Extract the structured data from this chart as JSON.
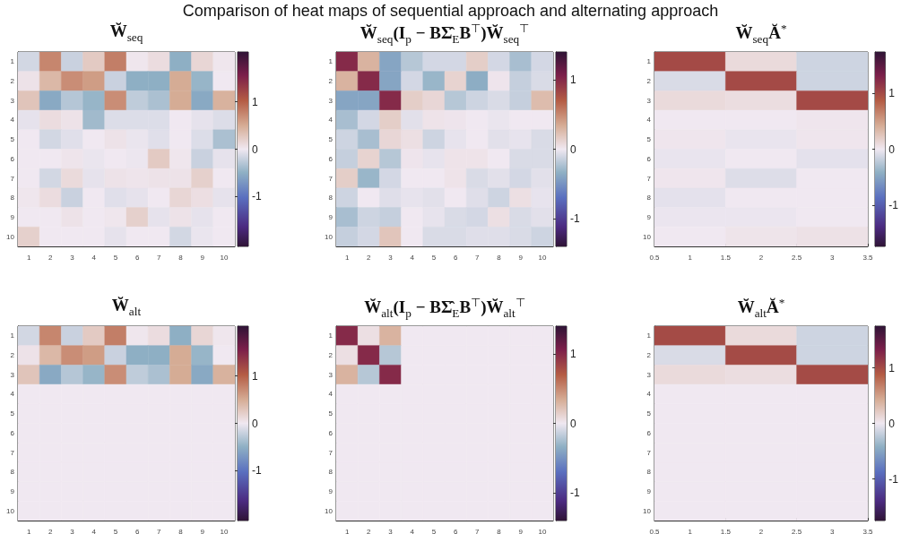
{
  "chart_data": [
    {
      "type": "heatmap",
      "title": "Comparison of heat maps of sequential approach and alternating approach",
      "subtitle": "W̆$_{seq}$",
      "categories": [
        "1",
        "2",
        "3",
        "4",
        "5",
        "6",
        "7",
        "8",
        "9",
        "10"
      ],
      "y_categories": [
        "1",
        "2",
        "3",
        "4",
        "5",
        "6",
        "7",
        "8",
        "9",
        "10"
      ],
      "cells": [
        [
          -0.15,
          0.75,
          -0.2,
          0.25,
          0.8,
          0.02,
          0.1,
          -0.5,
          0.15,
          0.02
        ],
        [
          0.05,
          0.4,
          0.7,
          0.6,
          -0.2,
          -0.5,
          -0.5,
          0.5,
          -0.45,
          0.0
        ],
        [
          0.3,
          -0.55,
          -0.3,
          -0.45,
          0.7,
          -0.25,
          -0.35,
          0.5,
          -0.55,
          0.45
        ],
        [
          -0.05,
          0.1,
          0.05,
          -0.4,
          -0.1,
          -0.1,
          -0.1,
          0.0,
          -0.05,
          -0.1
        ],
        [
          0.0,
          -0.15,
          -0.08,
          0.0,
          0.05,
          -0.03,
          -0.08,
          0.0,
          -0.1,
          -0.35
        ],
        [
          0.0,
          0.0,
          0.03,
          -0.03,
          0.0,
          -0.02,
          0.25,
          0.02,
          -0.2,
          -0.05
        ],
        [
          0.0,
          -0.15,
          0.12,
          -0.05,
          0.05,
          0.03,
          0.05,
          0.05,
          0.2,
          0.0
        ],
        [
          0.02,
          0.1,
          -0.2,
          0.0,
          -0.08,
          -0.05,
          0.0,
          0.15,
          0.08,
          -0.05
        ],
        [
          0.0,
          0.0,
          0.05,
          0.0,
          0.02,
          0.2,
          -0.05,
          0.05,
          -0.05,
          0.0
        ],
        [
          0.2,
          0.0,
          0.0,
          0.0,
          -0.05,
          0.0,
          0.0,
          -0.15,
          -0.03,
          0.0
        ]
      ],
      "clim": [
        -2.05,
        2.05
      ],
      "cticks": [
        -1,
        0,
        1
      ]
    },
    {
      "type": "heatmap",
      "title": "W̆$_{seq}$(I$_{p}$ − BΣ̂$_{E}$B$^{⊤}$)W̆$_{seq}$$^{⊤}$",
      "categories": [
        "1",
        "2",
        "3",
        "4",
        "5",
        "6",
        "7",
        "8",
        "9",
        "10"
      ],
      "y_categories": [
        "1",
        "2",
        "3",
        "4",
        "5",
        "6",
        "7",
        "8",
        "9",
        "10"
      ],
      "cells": [
        [
          1.0,
          0.3,
          -0.4,
          -0.2,
          -0.1,
          -0.1,
          0.15,
          -0.1,
          -0.25,
          -0.1
        ],
        [
          0.3,
          1.0,
          -0.4,
          -0.1,
          -0.3,
          0.12,
          -0.35,
          0.02,
          -0.15,
          -0.08
        ],
        [
          -0.4,
          -0.4,
          1.0,
          0.15,
          0.1,
          -0.2,
          -0.12,
          -0.08,
          -0.15,
          0.25
        ],
        [
          -0.25,
          -0.1,
          0.15,
          -0.05,
          0.03,
          0.02,
          0.0,
          -0.02,
          0.0,
          0.0
        ],
        [
          -0.12,
          -0.25,
          0.1,
          0.05,
          -0.12,
          -0.03,
          0.0,
          -0.05,
          -0.03,
          -0.08
        ],
        [
          -0.15,
          0.12,
          -0.2,
          0.02,
          -0.03,
          0.03,
          0.03,
          0.0,
          -0.08,
          -0.08
        ],
        [
          0.15,
          -0.3,
          -0.1,
          0.0,
          0.0,
          0.03,
          -0.08,
          -0.05,
          -0.1,
          -0.05
        ],
        [
          -0.12,
          0.0,
          -0.06,
          -0.03,
          -0.05,
          0.0,
          -0.06,
          -0.12,
          0.05,
          -0.03
        ],
        [
          -0.25,
          -0.12,
          -0.15,
          0.0,
          -0.03,
          -0.08,
          -0.1,
          0.05,
          -0.08,
          -0.05
        ],
        [
          -0.15,
          -0.1,
          0.2,
          0.0,
          -0.08,
          -0.08,
          -0.06,
          -0.06,
          -0.08,
          -0.12
        ]
      ],
      "clim": [
        -1.4,
        1.4
      ],
      "cticks": [
        -1,
        0,
        1
      ]
    },
    {
      "type": "heatmap",
      "title": "W̆$_{seq}$Ă$^{*}$",
      "x": [
        1,
        2,
        3
      ],
      "xlim": [
        0.5,
        3.5
      ],
      "xticks": [
        0.5,
        1,
        1.5,
        2,
        2.5,
        3,
        3.5
      ],
      "y_categories": [
        "1",
        "2",
        "3",
        "4",
        "5",
        "6",
        "7",
        "8",
        "9",
        "10"
      ],
      "cells": [
        [
          1.0,
          0.1,
          -0.15
        ],
        [
          -0.1,
          1.0,
          -0.15
        ],
        [
          0.1,
          0.08,
          1.0
        ],
        [
          0.0,
          0.0,
          0.02
        ],
        [
          0.02,
          -0.03,
          0.02
        ],
        [
          -0.03,
          0.0,
          -0.05
        ],
        [
          0.02,
          -0.08,
          0.0
        ],
        [
          -0.05,
          0.0,
          0.0
        ],
        [
          -0.02,
          -0.02,
          0.0
        ],
        [
          0.0,
          0.03,
          0.05
        ]
      ],
      "clim": [
        -1.74,
        1.74
      ],
      "cticks": [
        -1,
        0,
        1
      ]
    },
    {
      "type": "heatmap",
      "title": "W̆$_{alt}$",
      "categories": [
        "1",
        "2",
        "3",
        "4",
        "5",
        "6",
        "7",
        "8",
        "9",
        "10"
      ],
      "y_categories": [
        "1",
        "2",
        "3",
        "4",
        "5",
        "6",
        "7",
        "8",
        "9",
        "10"
      ],
      "cells": [
        [
          -0.15,
          0.75,
          -0.2,
          0.25,
          0.8,
          0.02,
          0.1,
          -0.5,
          0.15,
          0.02
        ],
        [
          0.05,
          0.4,
          0.7,
          0.6,
          -0.2,
          -0.5,
          -0.5,
          0.5,
          -0.45,
          0.0
        ],
        [
          0.3,
          -0.55,
          -0.3,
          -0.45,
          0.7,
          -0.25,
          -0.35,
          0.5,
          -0.55,
          0.45
        ],
        [
          0,
          0,
          0,
          0,
          0,
          0,
          0,
          0,
          0,
          0
        ],
        [
          0,
          0,
          0,
          0,
          0,
          0,
          0,
          0,
          0,
          0
        ],
        [
          0,
          0,
          0,
          0,
          0,
          0,
          0,
          0,
          0,
          0
        ],
        [
          0,
          0,
          0,
          0,
          0,
          0,
          0,
          0,
          0,
          0
        ],
        [
          0,
          0,
          0,
          0,
          0,
          0,
          0,
          0,
          0,
          0
        ],
        [
          0,
          0,
          0,
          0,
          0,
          0,
          0,
          0,
          0,
          0
        ],
        [
          0,
          0,
          0,
          0,
          0,
          0,
          0,
          0,
          0,
          0
        ]
      ],
      "clim": [
        -2.05,
        2.05
      ],
      "cticks": [
        -1,
        0,
        1
      ]
    },
    {
      "type": "heatmap",
      "title": "W̆$_{alt}$(I$_{p}$ − BΣ̂$_{E}$B$^{⊤}$)W̆$_{alt}$$^{⊤}$",
      "categories": [
        "1",
        "2",
        "3",
        "4",
        "5",
        "6",
        "7",
        "8",
        "9",
        "10"
      ],
      "y_categories": [
        "1",
        "2",
        "3",
        "4",
        "5",
        "6",
        "7",
        "8",
        "9",
        "10"
      ],
      "cells": [
        [
          1.0,
          0.05,
          0.3,
          0,
          0,
          0,
          0,
          0,
          0,
          0
        ],
        [
          0.05,
          1.0,
          -0.2,
          0,
          0,
          0,
          0,
          0,
          0,
          0
        ],
        [
          0.3,
          -0.2,
          1.0,
          0,
          0,
          0,
          0,
          0,
          0,
          0
        ],
        [
          0,
          0,
          0,
          0,
          0,
          0,
          0,
          0,
          0,
          0
        ],
        [
          0,
          0,
          0,
          0,
          0,
          0,
          0,
          0,
          0,
          0
        ],
        [
          0,
          0,
          0,
          0,
          0,
          0,
          0,
          0,
          0,
          0
        ],
        [
          0,
          0,
          0,
          0,
          0,
          0,
          0,
          0,
          0,
          0
        ],
        [
          0,
          0,
          0,
          0,
          0,
          0,
          0,
          0,
          0,
          0
        ],
        [
          0,
          0,
          0,
          0,
          0,
          0,
          0,
          0,
          0,
          0
        ],
        [
          0,
          0,
          0,
          0,
          0,
          0,
          0,
          0,
          0,
          0
        ]
      ],
      "clim": [
        -1.4,
        1.4
      ],
      "cticks": [
        -1,
        0,
        1
      ]
    },
    {
      "type": "heatmap",
      "title": "W̆$_{alt}$Ă$^{*}$",
      "x": [
        1,
        2,
        3
      ],
      "xlim": [
        0.5,
        3.5
      ],
      "xticks": [
        0.5,
        1,
        1.5,
        2,
        2.5,
        3,
        3.5
      ],
      "y_categories": [
        "1",
        "2",
        "3",
        "4",
        "5",
        "6",
        "7",
        "8",
        "9",
        "10"
      ],
      "cells": [
        [
          1.0,
          0.1,
          -0.15
        ],
        [
          -0.1,
          1.0,
          -0.15
        ],
        [
          0.1,
          0.08,
          1.0
        ],
        [
          0,
          0,
          0
        ],
        [
          0,
          0,
          0
        ],
        [
          0,
          0,
          0
        ],
        [
          0,
          0,
          0
        ],
        [
          0,
          0,
          0
        ],
        [
          0,
          0,
          0
        ],
        [
          0,
          0,
          0
        ]
      ],
      "clim": [
        -1.75,
        1.75
      ],
      "cticks": [
        -1,
        0,
        1
      ]
    }
  ]
}
